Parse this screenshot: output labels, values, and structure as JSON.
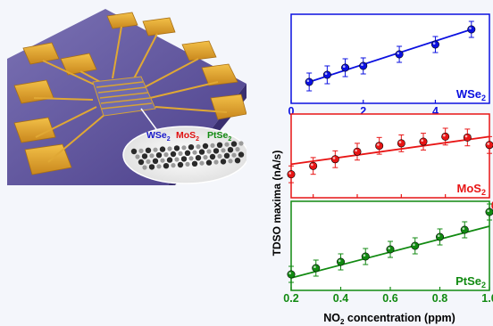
{
  "illustration": {
    "labels": [
      {
        "text": "WSe",
        "sub": "2",
        "color": "#1a1acc"
      },
      {
        "text": "MoS",
        "sub": "2",
        "color": "#e01010"
      },
      {
        "text": "PtSe",
        "sub": "2",
        "color": "#118a11"
      }
    ]
  },
  "chart_data": [
    {
      "type": "scatter",
      "series_name": "WSe",
      "series_name_sub": "2",
      "color": "#0b10e0",
      "x": [
        0.5,
        1.0,
        1.5,
        2.0,
        3.0,
        4.0,
        5.0
      ],
      "y": [
        0.24,
        0.32,
        0.4,
        0.42,
        0.55,
        0.66,
        0.83
      ],
      "err": [
        0.1,
        0.1,
        0.1,
        0.09,
        0.09,
        0.09,
        0.09
      ],
      "fit": [
        [
          0.5,
          0.24
        ],
        [
          5.0,
          0.83
        ]
      ],
      "xlim": [
        0,
        5.5
      ],
      "ylim": [
        0,
        1
      ],
      "xticks": [
        "0",
        "2",
        "4"
      ],
      "xtick_values": [
        0,
        2,
        4
      ],
      "xtick_color": "#0b10e0",
      "xtick_position": "bottom"
    },
    {
      "type": "scatter",
      "series_name": "MoS",
      "series_name_sub": "2",
      "color": "#e81515",
      "x": [
        0.1,
        0.2,
        0.3,
        0.4,
        0.5,
        0.6,
        0.7,
        0.8,
        0.9,
        1.0
      ],
      "y": [
        0.28,
        0.38,
        0.46,
        0.55,
        0.62,
        0.65,
        0.67,
        0.73,
        0.72,
        0.63
      ],
      "err": [
        0.1,
        0.1,
        0.1,
        0.1,
        0.1,
        0.1,
        0.1,
        0.1,
        0.1,
        0.1
      ],
      "fit": [
        [
          0.1,
          0.4
        ],
        [
          1.0,
          0.73
        ]
      ],
      "xlim": [
        0.1,
        1.0
      ],
      "ylim": [
        0,
        1
      ],
      "xticks": [
        "0.2",
        "0.4",
        "0.6",
        "0.8",
        "1.0"
      ],
      "xtick_values": [
        0.2,
        0.4,
        0.6,
        0.8,
        1.0
      ],
      "xtick_color": "#e81515",
      "xtick_position": "bottom"
    },
    {
      "type": "scatter",
      "series_name": "PtSe",
      "series_name_sub": "2",
      "color": "#118a11",
      "x": [
        0.2,
        0.3,
        0.4,
        0.5,
        0.6,
        0.7,
        0.8,
        0.9,
        1.0
      ],
      "y": [
        0.18,
        0.25,
        0.32,
        0.38,
        0.46,
        0.5,
        0.6,
        0.68,
        0.88
      ],
      "err": [
        0.09,
        0.09,
        0.09,
        0.09,
        0.09,
        0.09,
        0.09,
        0.09,
        0.09
      ],
      "fit": [
        [
          0.2,
          0.14
        ],
        [
          1.0,
          0.72
        ]
      ],
      "xlim": [
        0.2,
        1.0
      ],
      "ylim": [
        0,
        1
      ],
      "xticks": [
        "0.2",
        "0.4",
        "0.6",
        "0.8",
        "1.0"
      ],
      "xtick_values": [
        0.2,
        0.4,
        0.6,
        0.8,
        1.0
      ],
      "xtick_color": "#118a11",
      "xtick_position": "bottom"
    }
  ],
  "ylabel": "TDSO maxima (nA/s)",
  "xlabel_parts": [
    "NO",
    "2",
    " concentration (ppm)"
  ]
}
